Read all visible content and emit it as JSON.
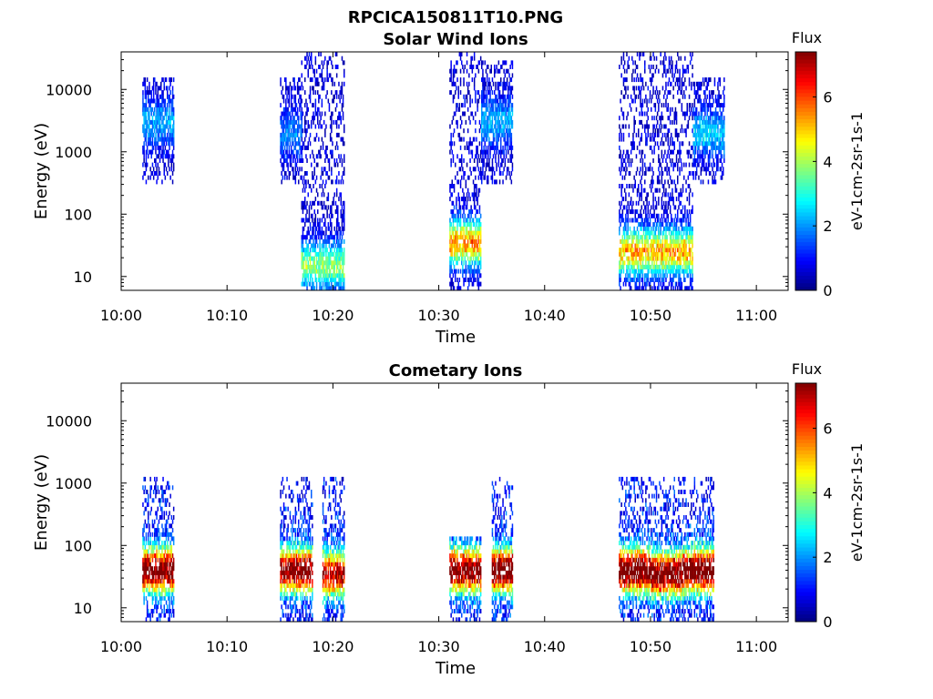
{
  "figure_title": "RPCICA150811T10.PNG",
  "colorbar": {
    "title": "Flux",
    "label": "eV-1cm-2sr-1s-1",
    "min": 0,
    "max": 7.4,
    "ticks": [
      0,
      2,
      4,
      6
    ]
  },
  "chart_data": [
    {
      "type": "heatmap",
      "title": "Solar Wind Ions",
      "xlabel": "Time",
      "ylabel": "Energy (eV)",
      "xlim": [
        "10:00",
        "11:03"
      ],
      "ylim": [
        6,
        40000
      ],
      "yscale": "log",
      "xticks": [
        "10:00",
        "10:10",
        "10:20",
        "10:30",
        "10:40",
        "10:50",
        "11:00"
      ],
      "yticks": [
        10,
        100,
        1000,
        10000
      ],
      "bursts": [
        {
          "start": "10:02",
          "end": "10:05",
          "emin": 300,
          "emax": 16000,
          "peak_energy": 3000,
          "peak_flux": 1.5
        },
        {
          "start": "10:15",
          "end": "10:17",
          "emin": 300,
          "emax": 16000,
          "peak_energy": 2000,
          "peak_flux": 1.2
        },
        {
          "start": "10:17",
          "end": "10:21",
          "emin": 6,
          "emax": 40000,
          "peak_energy": 15,
          "peak_flux": 3.2
        },
        {
          "start": "10:31",
          "end": "10:34",
          "emin": 6,
          "emax": 40000,
          "peak_energy": 35,
          "peak_flux": 4.8
        },
        {
          "start": "10:34",
          "end": "10:37",
          "emin": 300,
          "emax": 30000,
          "peak_energy": 3000,
          "peak_flux": 1.6
        },
        {
          "start": "10:47",
          "end": "10:54",
          "emin": 6,
          "emax": 40000,
          "peak_energy": 25,
          "peak_flux": 4.5
        },
        {
          "start": "10:54",
          "end": "10:57",
          "emin": 300,
          "emax": 16000,
          "peak_energy": 2000,
          "peak_flux": 1.8
        }
      ]
    },
    {
      "type": "heatmap",
      "title": "Cometary Ions",
      "xlabel": "Time",
      "ylabel": "Energy (eV)",
      "xlim": [
        "10:00",
        "11:03"
      ],
      "ylim": [
        6,
        40000
      ],
      "yscale": "log",
      "xticks": [
        "10:00",
        "10:10",
        "10:20",
        "10:30",
        "10:40",
        "10:50",
        "11:00"
      ],
      "yticks": [
        10,
        100,
        1000,
        10000
      ],
      "bursts": [
        {
          "start": "10:02",
          "end": "10:05",
          "emin": 6,
          "emax": 1300,
          "peak_energy": 40,
          "peak_flux": 7.0
        },
        {
          "start": "10:15",
          "end": "10:18",
          "emin": 6,
          "emax": 1300,
          "peak_energy": 40,
          "peak_flux": 6.8
        },
        {
          "start": "10:19",
          "end": "10:21",
          "emin": 6,
          "emax": 1300,
          "peak_energy": 35,
          "peak_flux": 6.2
        },
        {
          "start": "10:31",
          "end": "10:34",
          "emin": 6,
          "emax": 130,
          "peak_energy": 40,
          "peak_flux": 6.9
        },
        {
          "start": "10:35",
          "end": "10:37",
          "emin": 6,
          "emax": 1300,
          "peak_energy": 40,
          "peak_flux": 7.2
        },
        {
          "start": "10:47",
          "end": "10:50",
          "emin": 6,
          "emax": 1300,
          "peak_energy": 40,
          "peak_flux": 7.3
        },
        {
          "start": "10:50",
          "end": "10:53",
          "emin": 6,
          "emax": 1300,
          "peak_energy": 35,
          "peak_flux": 7.0
        },
        {
          "start": "10:53",
          "end": "10:56",
          "emin": 6,
          "emax": 1300,
          "peak_energy": 40,
          "peak_flux": 7.2
        }
      ]
    }
  ]
}
